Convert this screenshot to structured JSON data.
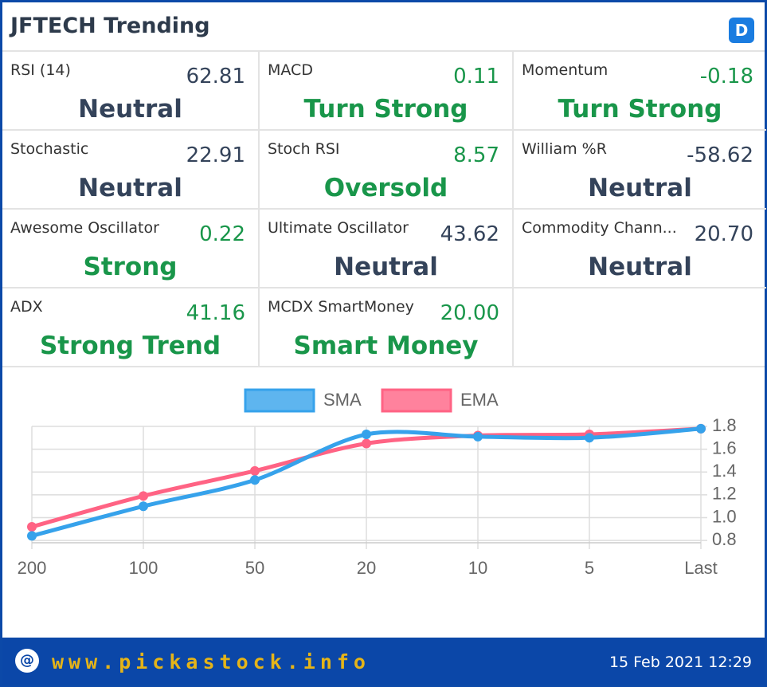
{
  "header": {
    "title": "JFTECH Trending",
    "badge": "D"
  },
  "indicators": [
    {
      "name": "RSI (14)",
      "value": "62.81",
      "status": "Neutral",
      "color": "#34435a"
    },
    {
      "name": "MACD",
      "value": "0.11",
      "status": "Turn Strong",
      "color": "#19964a"
    },
    {
      "name": "Momentum",
      "value": "-0.18",
      "status": "Turn Strong",
      "color": "#19964a"
    },
    {
      "name": "Stochastic",
      "value": "22.91",
      "status": "Neutral",
      "color": "#34435a"
    },
    {
      "name": "Stoch RSI",
      "value": "8.57",
      "status": "Oversold",
      "color": "#19964a"
    },
    {
      "name": "William %R",
      "value": "-58.62",
      "status": "Neutral",
      "color": "#34435a"
    },
    {
      "name": "Awesome Oscillator",
      "value": "0.22",
      "status": "Strong",
      "color": "#19964a"
    },
    {
      "name": "Ultimate Oscillator",
      "value": "43.62",
      "status": "Neutral",
      "color": "#34435a"
    },
    {
      "name": "Commodity Chann...",
      "value": "20.70",
      "status": "Neutral",
      "color": "#34435a"
    },
    {
      "name": "ADX",
      "value": "41.16",
      "status": "Strong Trend",
      "color": "#19964a"
    },
    {
      "name": "MCDX SmartMoney",
      "value": "20.00",
      "status": "Smart Money",
      "color": "#19964a"
    }
  ],
  "chart_data": {
    "type": "line",
    "categories": [
      "200",
      "100",
      "50",
      "20",
      "10",
      "5",
      "Last"
    ],
    "series": [
      {
        "name": "SMA",
        "color": "#36a2eb",
        "values": [
          0.84,
          1.1,
          1.33,
          1.73,
          1.71,
          1.7,
          1.78
        ]
      },
      {
        "name": "EMA",
        "color": "#ff6384",
        "values": [
          0.92,
          1.19,
          1.41,
          1.65,
          1.72,
          1.73,
          1.78
        ]
      }
    ],
    "ylim": [
      0.78,
      1.8
    ],
    "yticks": [
      {
        "value": 0.8,
        "label": "0.8"
      },
      {
        "value": 1,
        "label": "1.0"
      },
      {
        "value": 1.2,
        "label": "1.2"
      },
      {
        "value": 1.4,
        "label": "1.4"
      },
      {
        "value": 1.6,
        "label": "1.6"
      },
      {
        "value": 1.8,
        "label": "1.8"
      }
    ],
    "grid": true,
    "legend": "top"
  },
  "footer": {
    "site": "www.pickastock.info",
    "timestamp": "15 Feb 2021 12:29"
  }
}
